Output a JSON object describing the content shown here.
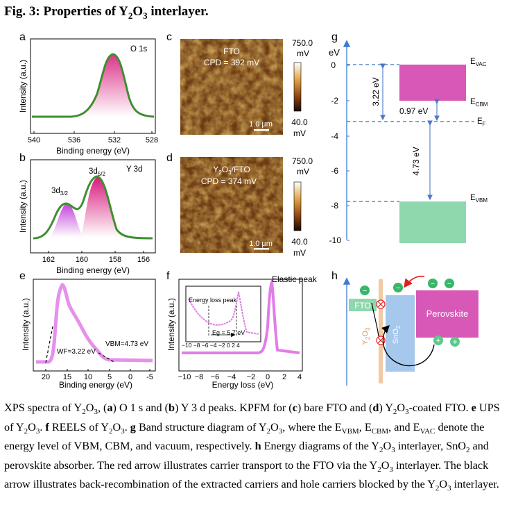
{
  "figure": {
    "title_prefix": "Fig. 3: Properties of Y",
    "title_sub1": "2",
    "title_mid": "O",
    "title_sub2": "3",
    "title_suffix": " interlayer."
  },
  "panel_labels": [
    "a",
    "b",
    "c",
    "d",
    "e",
    "f",
    "g",
    "h"
  ],
  "panel_a": {
    "peak_label": "O 1s",
    "xlabel": "Binding energy (eV)",
    "ylabel": "Intensity (a.u.)",
    "xticks": [
      "540",
      "536",
      "532",
      "528"
    ]
  },
  "panel_b": {
    "label_main": "Y 3d",
    "peak1": "3d",
    "peak1_sub": "3/2",
    "peak2": "3d",
    "peak2_sub": "5/2",
    "xlabel": "Binding energy (eV)",
    "ylabel": "Intensity (a.u.)",
    "xticks": [
      "162",
      "160",
      "158",
      "156"
    ]
  },
  "panel_c": {
    "label_line1": "FTO",
    "label_line2": "CPD = 392 mV",
    "scalebar": "1.0 µm",
    "cbar_max": "750.0",
    "cbar_max_unit": "mV",
    "cbar_min": "40.0",
    "cbar_min_unit": "mV"
  },
  "panel_d": {
    "label_line1_a": "Y",
    "label_line1_sub1": "2",
    "label_line1_b": "O",
    "label_line1_sub2": "3",
    "label_line1_c": "/FTO",
    "label_line2": "CPD = 374 mV",
    "scalebar": "1.0 µm",
    "cbar_max": "750.0",
    "cbar_max_unit": "mV",
    "cbar_min": "40.0",
    "cbar_min_unit": "mV"
  },
  "panel_e": {
    "wf": "WF=3.22 eV",
    "vbm": "VBM=4.73 eV",
    "xlabel": "Binding energy (eV)",
    "ylabel": "Intensity (a.u.)",
    "xticks": [
      "20",
      "15",
      "10",
      "5",
      "0",
      "-5"
    ]
  },
  "panel_f": {
    "peak": "Elastic peak",
    "inset_label": "Energy loss peak",
    "eg": "Eg = 5.7 eV",
    "inset_ticks": "−10 −8 −6 −4 −2  0  2  4",
    "xlabel": "Energy loss (eV)",
    "ylabel": "Intensity (a.u.)",
    "xticks": [
      "−10",
      "−8",
      "−6",
      "−4",
      "−2",
      "0",
      "2",
      "4"
    ]
  },
  "panel_g": {
    "ylabel": "eV",
    "yticks": [
      "0",
      "-2",
      "-4",
      "-6",
      "-8",
      "-10"
    ],
    "evac": "E",
    "evac_sub": "VAC",
    "ecbm": "E",
    "ecbm_sub": "CBM",
    "ef": "E",
    "ef_sub": "F",
    "evbm": "E",
    "evbm_sub": "VBM",
    "gap1": "3.22 eV",
    "gap2": "0.97 eV",
    "gap3": "4.73 eV"
  },
  "panel_h": {
    "fto": "FTO",
    "y2o3": "Y",
    "y2o3_sub1": "2",
    "y2o3_mid": "O",
    "y2o3_sub2": "3",
    "sno2": "SnO",
    "sno2_sub": "2",
    "perovskite": "Perovskite",
    "minus": "−",
    "plus": "+"
  },
  "caption": {
    "t1": "XPS spectra of Y",
    "t2": "O",
    "t3": ", (",
    "a": "a",
    "t4": ") O 1 s and (",
    "b": "b",
    "t5": ") Y 3 d peaks. KPFM for (",
    "c": "c",
    "t6": ") bare FTO and (",
    "d": "d",
    "t7": ") Y",
    "t8": "O",
    "t9": "-coated FTO. ",
    "e": "e",
    "t10": " UPS of Y",
    "t11": "O",
    "t12": ". ",
    "f": "f",
    "t13": " REELS of Y",
    "t14": "O",
    "t15": ". ",
    "g": "g",
    "t16": " Band structure diagram of Y",
    "t17": "O",
    "t18": ", where the E",
    "vbm": "VBM",
    "t19": ", E",
    "cbm": "CBM",
    "t20": ", and E",
    "vac": "VAC",
    "t21": " denote the energy level of VBM, CBM, and vacuum, respectively. ",
    "h": "h",
    "t22": " Energy diagrams of the Y",
    "t23": "O",
    "t24": " interlayer, SnO",
    "t25": " and perovskite absorber. The red arrow illustrates carrier transport to the FTO via the Y",
    "t26": "O",
    "t27": " interlayer. The black arrow illustrates back-recombination of the extracted carriers and hole carriers blocked by the Y",
    "t28": "O",
    "t29": " interlayer.",
    "s2": "2",
    "s3": "3"
  }
}
